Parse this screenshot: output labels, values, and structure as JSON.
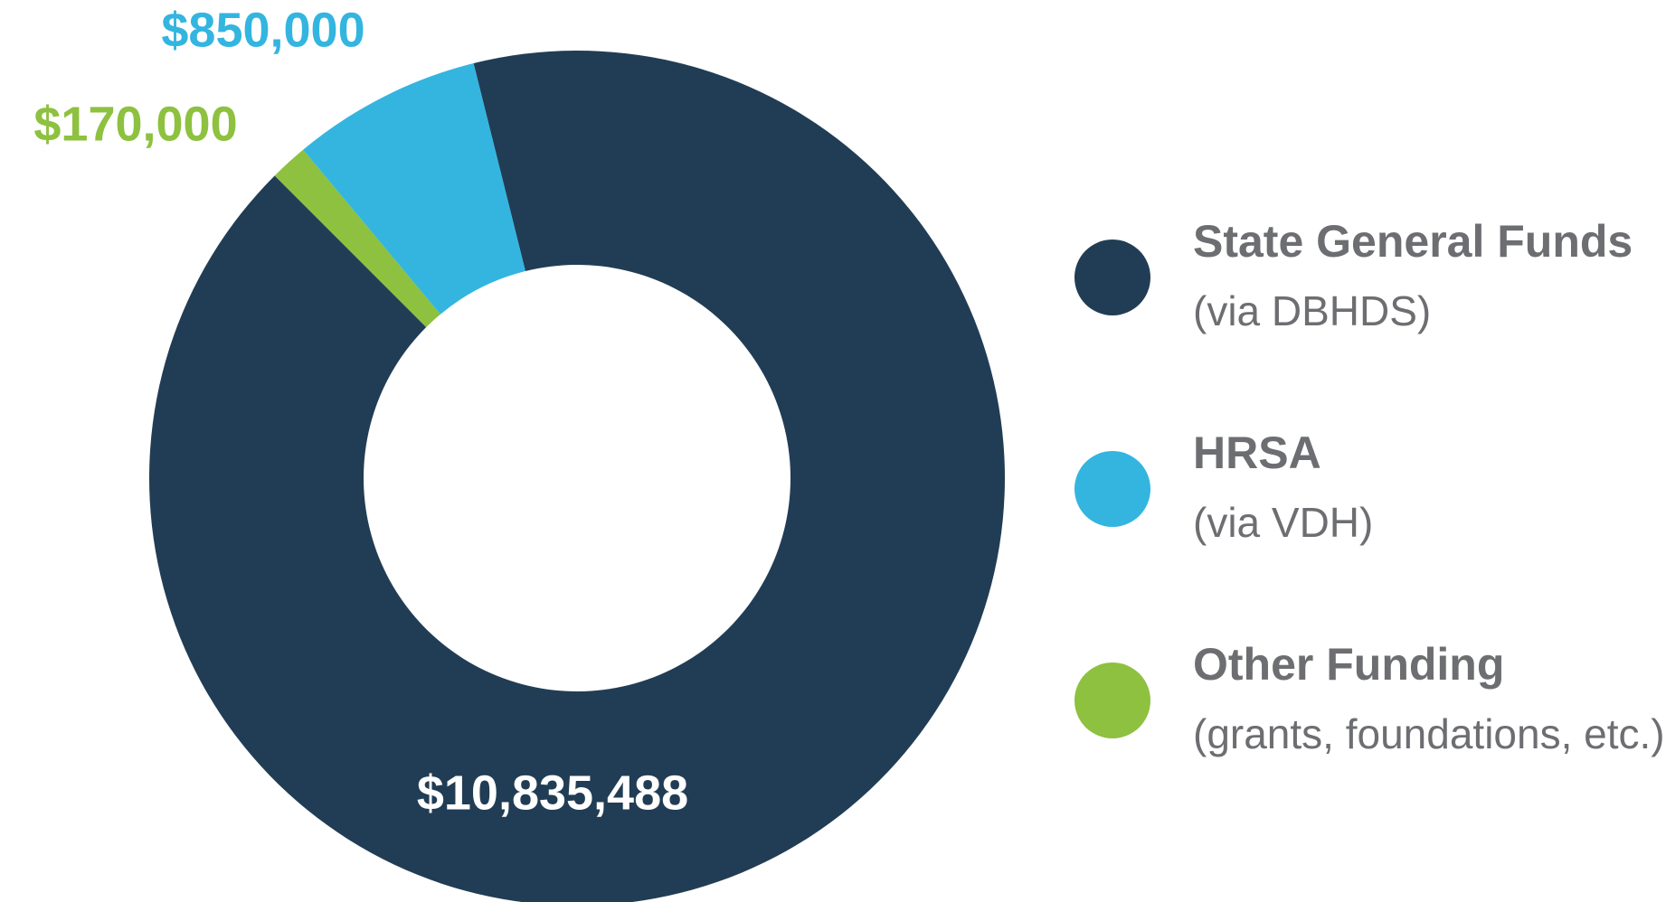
{
  "chart_data": {
    "type": "donut",
    "categories": [
      "State General Funds",
      "Other Funding",
      "HRSA"
    ],
    "category_notes": [
      "(via DBHDS)",
      "(grants, foundations, etc.)",
      "(via VDH)"
    ],
    "values": [
      10835488,
      170000,
      850000
    ],
    "value_labels": [
      "$10,835,488",
      "$170,000",
      "$850,000"
    ],
    "colors": [
      "#213d55",
      "#8dc13f",
      "#33b5e0"
    ]
  }
}
